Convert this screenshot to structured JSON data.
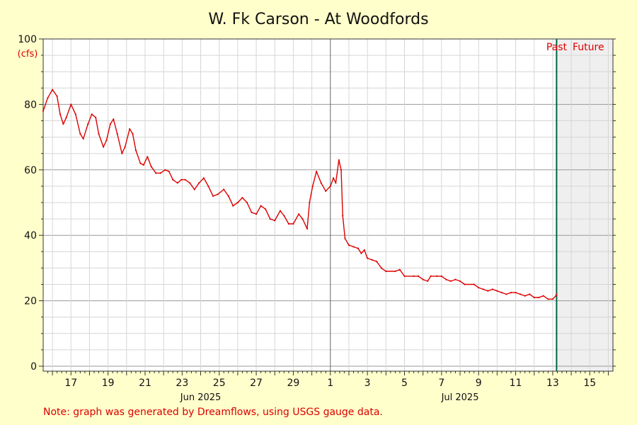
{
  "colors": {
    "background": "#ffffcc",
    "plot_background": "#ffffff",
    "future_shade": "#efefef",
    "series": "#dd0000",
    "now_line": "#006644",
    "grid_major": "#999999",
    "grid_minor": "#d6d6d6",
    "accent_text": "#dd0000"
  },
  "chart_data": {
    "type": "line",
    "title": "W. Fk Carson - At Woodfords",
    "ylabel": "(cfs)",
    "ylim": [
      0,
      100
    ],
    "yticks": [
      0,
      20,
      40,
      60,
      80,
      100
    ],
    "x_unit": "date (day-of-month, 2025)",
    "xlim": [
      "2025-06-15T12:00",
      "2025-07-16T06:00"
    ],
    "xticks": [
      {
        "date": "2025-06-17",
        "label": "17"
      },
      {
        "date": "2025-06-19",
        "label": "19"
      },
      {
        "date": "2025-06-21",
        "label": "21"
      },
      {
        "date": "2025-06-23",
        "label": "23"
      },
      {
        "date": "2025-06-25",
        "label": "25"
      },
      {
        "date": "2025-06-27",
        "label": "27"
      },
      {
        "date": "2025-06-29",
        "label": "29"
      },
      {
        "date": "2025-07-01",
        "label": "1"
      },
      {
        "date": "2025-07-03",
        "label": "3"
      },
      {
        "date": "2025-07-05",
        "label": "5"
      },
      {
        "date": "2025-07-07",
        "label": "7"
      },
      {
        "date": "2025-07-09",
        "label": "9"
      },
      {
        "date": "2025-07-11",
        "label": "11"
      },
      {
        "date": "2025-07-13",
        "label": "13"
      },
      {
        "date": "2025-07-15",
        "label": "15"
      }
    ],
    "month_labels": [
      {
        "date": "2025-06-24",
        "label": "Jun 2025"
      },
      {
        "date": "2025-07-08",
        "label": "Jul 2025"
      }
    ],
    "month_boundary": "2025-07-01",
    "now": "2025-07-13T05:00",
    "past_label": "Past",
    "future_label": "Future",
    "grid": true,
    "series": [
      {
        "values": [
          [
            "2025-06-15T12:00",
            78
          ],
          [
            "2025-06-15T18:00",
            82
          ],
          [
            "2025-06-16T00:00",
            84.5
          ],
          [
            "2025-06-16T06:00",
            82.5
          ],
          [
            "2025-06-16T10:00",
            77
          ],
          [
            "2025-06-16T14:00",
            74
          ],
          [
            "2025-06-16T18:00",
            76
          ],
          [
            "2025-06-17T00:00",
            80
          ],
          [
            "2025-06-17T06:00",
            77
          ],
          [
            "2025-06-17T12:00",
            71
          ],
          [
            "2025-06-17T16:00",
            69.5
          ],
          [
            "2025-06-17T22:00",
            74
          ],
          [
            "2025-06-18T03:00",
            77
          ],
          [
            "2025-06-18T08:00",
            76
          ],
          [
            "2025-06-18T12:00",
            71
          ],
          [
            "2025-06-18T18:00",
            67
          ],
          [
            "2025-06-18T22:00",
            69
          ],
          [
            "2025-06-19T03:00",
            74
          ],
          [
            "2025-06-19T07:00",
            75.5
          ],
          [
            "2025-06-19T12:00",
            71
          ],
          [
            "2025-06-19T18:00",
            65
          ],
          [
            "2025-06-19T22:00",
            67
          ],
          [
            "2025-06-20T04:00",
            72.5
          ],
          [
            "2025-06-20T08:00",
            71
          ],
          [
            "2025-06-20T12:00",
            66
          ],
          [
            "2025-06-20T18:00",
            62
          ],
          [
            "2025-06-20T22:00",
            61.5
          ],
          [
            "2025-06-21T03:00",
            64
          ],
          [
            "2025-06-21T08:00",
            61
          ],
          [
            "2025-06-21T14:00",
            59
          ],
          [
            "2025-06-21T20:00",
            59
          ],
          [
            "2025-06-22T02:00",
            60
          ],
          [
            "2025-06-22T07:00",
            59.5
          ],
          [
            "2025-06-22T12:00",
            57
          ],
          [
            "2025-06-22T18:00",
            56
          ],
          [
            "2025-06-22T23:00",
            57
          ],
          [
            "2025-06-23T04:00",
            57
          ],
          [
            "2025-06-23T10:00",
            56
          ],
          [
            "2025-06-23T16:00",
            54
          ],
          [
            "2025-06-23T22:00",
            56
          ],
          [
            "2025-06-24T04:00",
            57.5
          ],
          [
            "2025-06-24T10:00",
            55
          ],
          [
            "2025-06-24T16:00",
            52
          ],
          [
            "2025-06-24T22:00",
            52.5
          ],
          [
            "2025-06-25T06:00",
            54
          ],
          [
            "2025-06-25T12:00",
            52
          ],
          [
            "2025-06-25T18:00",
            49
          ],
          [
            "2025-06-26T00:00",
            50
          ],
          [
            "2025-06-26T06:00",
            51.5
          ],
          [
            "2025-06-26T12:00",
            50
          ],
          [
            "2025-06-26T18:00",
            47
          ],
          [
            "2025-06-27T00:00",
            46.5
          ],
          [
            "2025-06-27T06:00",
            49
          ],
          [
            "2025-06-27T12:00",
            48
          ],
          [
            "2025-06-27T18:00",
            45
          ],
          [
            "2025-06-28T00:00",
            44.5
          ],
          [
            "2025-06-28T07:00",
            47.5
          ],
          [
            "2025-06-28T12:00",
            46
          ],
          [
            "2025-06-28T18:00",
            43.5
          ],
          [
            "2025-06-29T00:00",
            43.5
          ],
          [
            "2025-06-29T07:00",
            46.5
          ],
          [
            "2025-06-29T12:00",
            45
          ],
          [
            "2025-06-29T18:00",
            42
          ],
          [
            "2025-06-29T21:00",
            50
          ],
          [
            "2025-06-30T01:00",
            55
          ],
          [
            "2025-06-30T06:00",
            59.5
          ],
          [
            "2025-06-30T12:00",
            56
          ],
          [
            "2025-06-30T18:00",
            53.5
          ],
          [
            "2025-07-01T00:00",
            55
          ],
          [
            "2025-07-01T04:00",
            57.5
          ],
          [
            "2025-07-01T07:00",
            56
          ],
          [
            "2025-07-01T11:00",
            63
          ],
          [
            "2025-07-01T14:00",
            60
          ],
          [
            "2025-07-01T16:00",
            46
          ],
          [
            "2025-07-01T19:00",
            39
          ],
          [
            "2025-07-02T00:00",
            37
          ],
          [
            "2025-07-02T06:00",
            36.5
          ],
          [
            "2025-07-02T12:00",
            36
          ],
          [
            "2025-07-02T16:00",
            34.5
          ],
          [
            "2025-07-02T20:00",
            35.5
          ],
          [
            "2025-07-03T00:00",
            33
          ],
          [
            "2025-07-03T06:00",
            32.5
          ],
          [
            "2025-07-03T12:00",
            32
          ],
          [
            "2025-07-03T18:00",
            30
          ],
          [
            "2025-07-04T00:00",
            29
          ],
          [
            "2025-07-04T12:00",
            29
          ],
          [
            "2025-07-04T18:00",
            29.5
          ],
          [
            "2025-07-05T00:00",
            27.5
          ],
          [
            "2025-07-05T12:00",
            27.5
          ],
          [
            "2025-07-05T18:00",
            27.5
          ],
          [
            "2025-07-06T00:00",
            26.5
          ],
          [
            "2025-07-06T06:00",
            26
          ],
          [
            "2025-07-06T10:00",
            27.5
          ],
          [
            "2025-07-06T18:00",
            27.5
          ],
          [
            "2025-07-07T00:00",
            27.5
          ],
          [
            "2025-07-07T06:00",
            26.5
          ],
          [
            "2025-07-07T12:00",
            26
          ],
          [
            "2025-07-07T18:00",
            26.5
          ],
          [
            "2025-07-08T00:00",
            26
          ],
          [
            "2025-07-08T06:00",
            25
          ],
          [
            "2025-07-08T18:00",
            25
          ],
          [
            "2025-07-09T00:00",
            24
          ],
          [
            "2025-07-09T06:00",
            23.5
          ],
          [
            "2025-07-09T12:00",
            23
          ],
          [
            "2025-07-09T18:00",
            23.5
          ],
          [
            "2025-07-10T00:00",
            23
          ],
          [
            "2025-07-10T06:00",
            22.5
          ],
          [
            "2025-07-10T12:00",
            22
          ],
          [
            "2025-07-10T18:00",
            22.5
          ],
          [
            "2025-07-11T00:00",
            22.5
          ],
          [
            "2025-07-11T06:00",
            22
          ],
          [
            "2025-07-11T12:00",
            21.5
          ],
          [
            "2025-07-11T18:00",
            22
          ],
          [
            "2025-07-12T00:00",
            21
          ],
          [
            "2025-07-12T06:00",
            21
          ],
          [
            "2025-07-12T12:00",
            21.5
          ],
          [
            "2025-07-12T18:00",
            20.5
          ],
          [
            "2025-07-13T00:00",
            20.5
          ],
          [
            "2025-07-13T04:00",
            21.5
          ],
          [
            "2025-07-13T05:00",
            22
          ]
        ]
      }
    ],
    "note": "Note: graph was generated by Dreamflows, using USGS gauge data."
  }
}
